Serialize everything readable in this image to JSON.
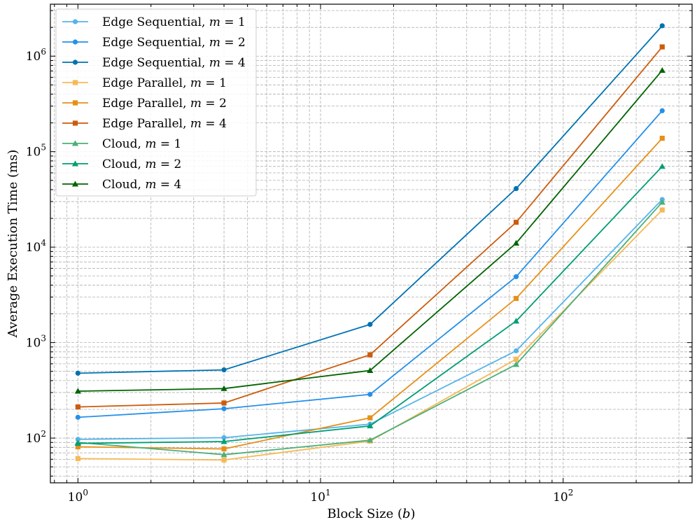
{
  "chart_data": {
    "type": "line",
    "title": "",
    "xlabel": "Block Size (b)",
    "ylabel": "Average Execution Time (ms)",
    "xscale": "log",
    "yscale": "log",
    "xlim": [
      0.77,
      340
    ],
    "ylim": [
      34,
      3500000
    ],
    "grid": true,
    "legend_position": "top-left",
    "x": [
      1,
      4,
      16,
      64,
      256
    ],
    "x_tick_labels": [
      "10^0",
      "10^1",
      "10^2"
    ],
    "y_tick_labels": [
      "10^2",
      "10^3",
      "10^4",
      "10^5",
      "10^6"
    ],
    "series": [
      {
        "name": "Edge Sequential, m = 1",
        "color": "#56b4e9",
        "marker": "circle",
        "values": [
          97,
          101,
          140,
          820,
          31500
        ]
      },
      {
        "name": "Edge Sequential, m = 2",
        "color": "#2690e8",
        "marker": "circle",
        "values": [
          165,
          203,
          287,
          4900,
          268000
        ]
      },
      {
        "name": "Edge Sequential, m = 4",
        "color": "#0072b2",
        "marker": "circle",
        "values": [
          478,
          518,
          1550,
          41000,
          2080000
        ]
      },
      {
        "name": "Edge Parallel, m = 1",
        "color": "#f7b955",
        "marker": "square",
        "values": [
          61,
          59,
          93,
          670,
          24500
        ]
      },
      {
        "name": "Edge Parallel, m = 2",
        "color": "#e69018",
        "marker": "square",
        "values": [
          81,
          77,
          163,
          2900,
          138000
        ]
      },
      {
        "name": "Edge Parallel, m = 4",
        "color": "#cc5c0c",
        "marker": "square",
        "values": [
          212,
          233,
          745,
          18200,
          1250000
        ]
      },
      {
        "name": "Cloud, m = 1",
        "color": "#4caf78",
        "marker": "triangle",
        "values": [
          90,
          67,
          95,
          590,
          29500
        ]
      },
      {
        "name": "Cloud, m = 2",
        "color": "#009e73",
        "marker": "triangle",
        "values": [
          88,
          92,
          134,
          1680,
          70000
        ]
      },
      {
        "name": "Cloud, m = 4",
        "color": "#006400",
        "marker": "triangle",
        "values": [
          310,
          330,
          510,
          11000,
          710000
        ]
      }
    ]
  }
}
